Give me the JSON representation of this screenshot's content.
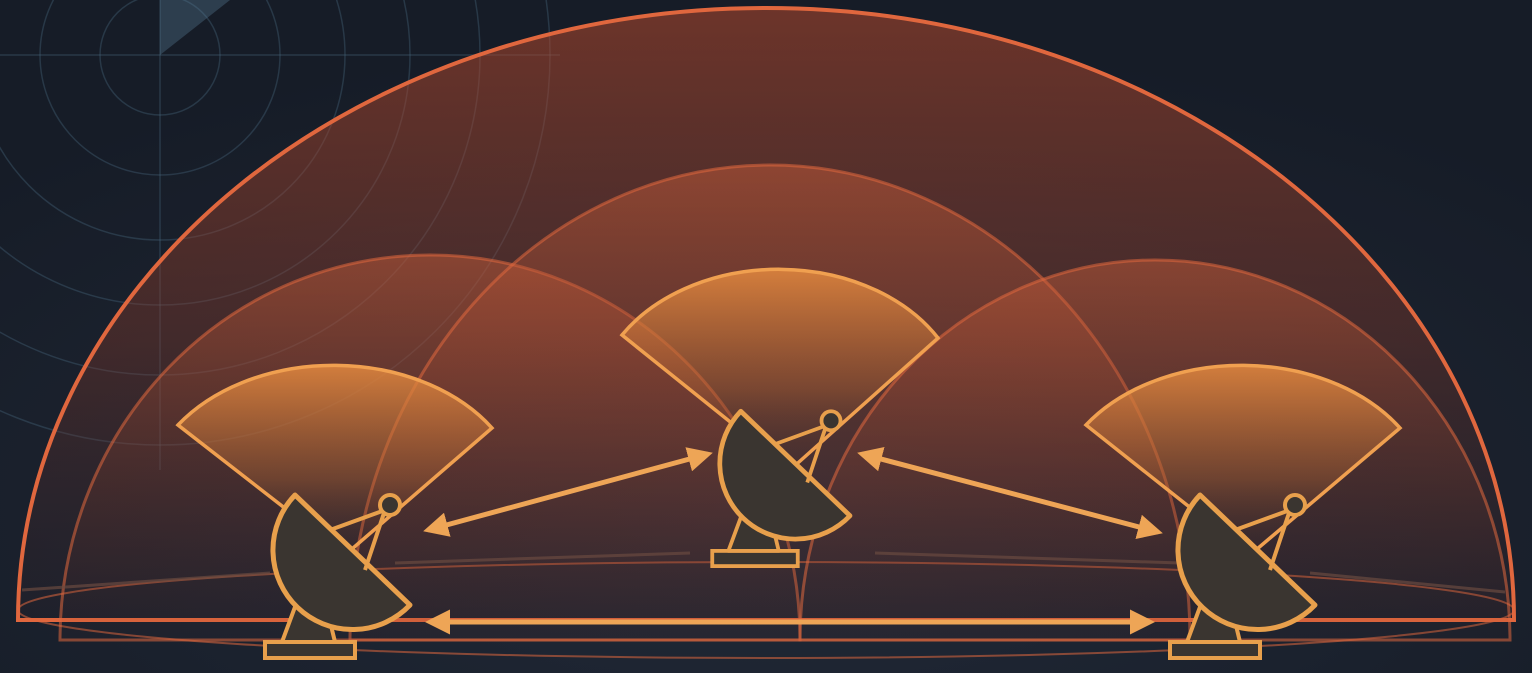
{
  "colors": {
    "background": "#1b2230",
    "background_deep": "#141a25",
    "dome_stroke": "#e0673e",
    "dome_fill": "#c2512f",
    "coverage_fill": "#e58a3f",
    "coverage_stroke": "#f0a050",
    "antenna_stroke": "#e8a04c",
    "antenna_fill": "#3a3530",
    "link_color": "#eea556",
    "radar_grid": "#4a6c85"
  },
  "diagram": {
    "antennas": [
      {
        "id": "left",
        "icon": "satellite-dish-icon"
      },
      {
        "id": "center",
        "icon": "satellite-dish-icon"
      },
      {
        "id": "right",
        "icon": "satellite-dish-icon"
      }
    ],
    "links": [
      {
        "from": "left",
        "to": "center",
        "direction": "bidirectional"
      },
      {
        "from": "center",
        "to": "right",
        "direction": "bidirectional"
      },
      {
        "from": "left",
        "to": "right",
        "direction": "bidirectional"
      }
    ],
    "coverage_layers": [
      "outer-dome",
      "middle-domes",
      "antenna-beams"
    ]
  }
}
